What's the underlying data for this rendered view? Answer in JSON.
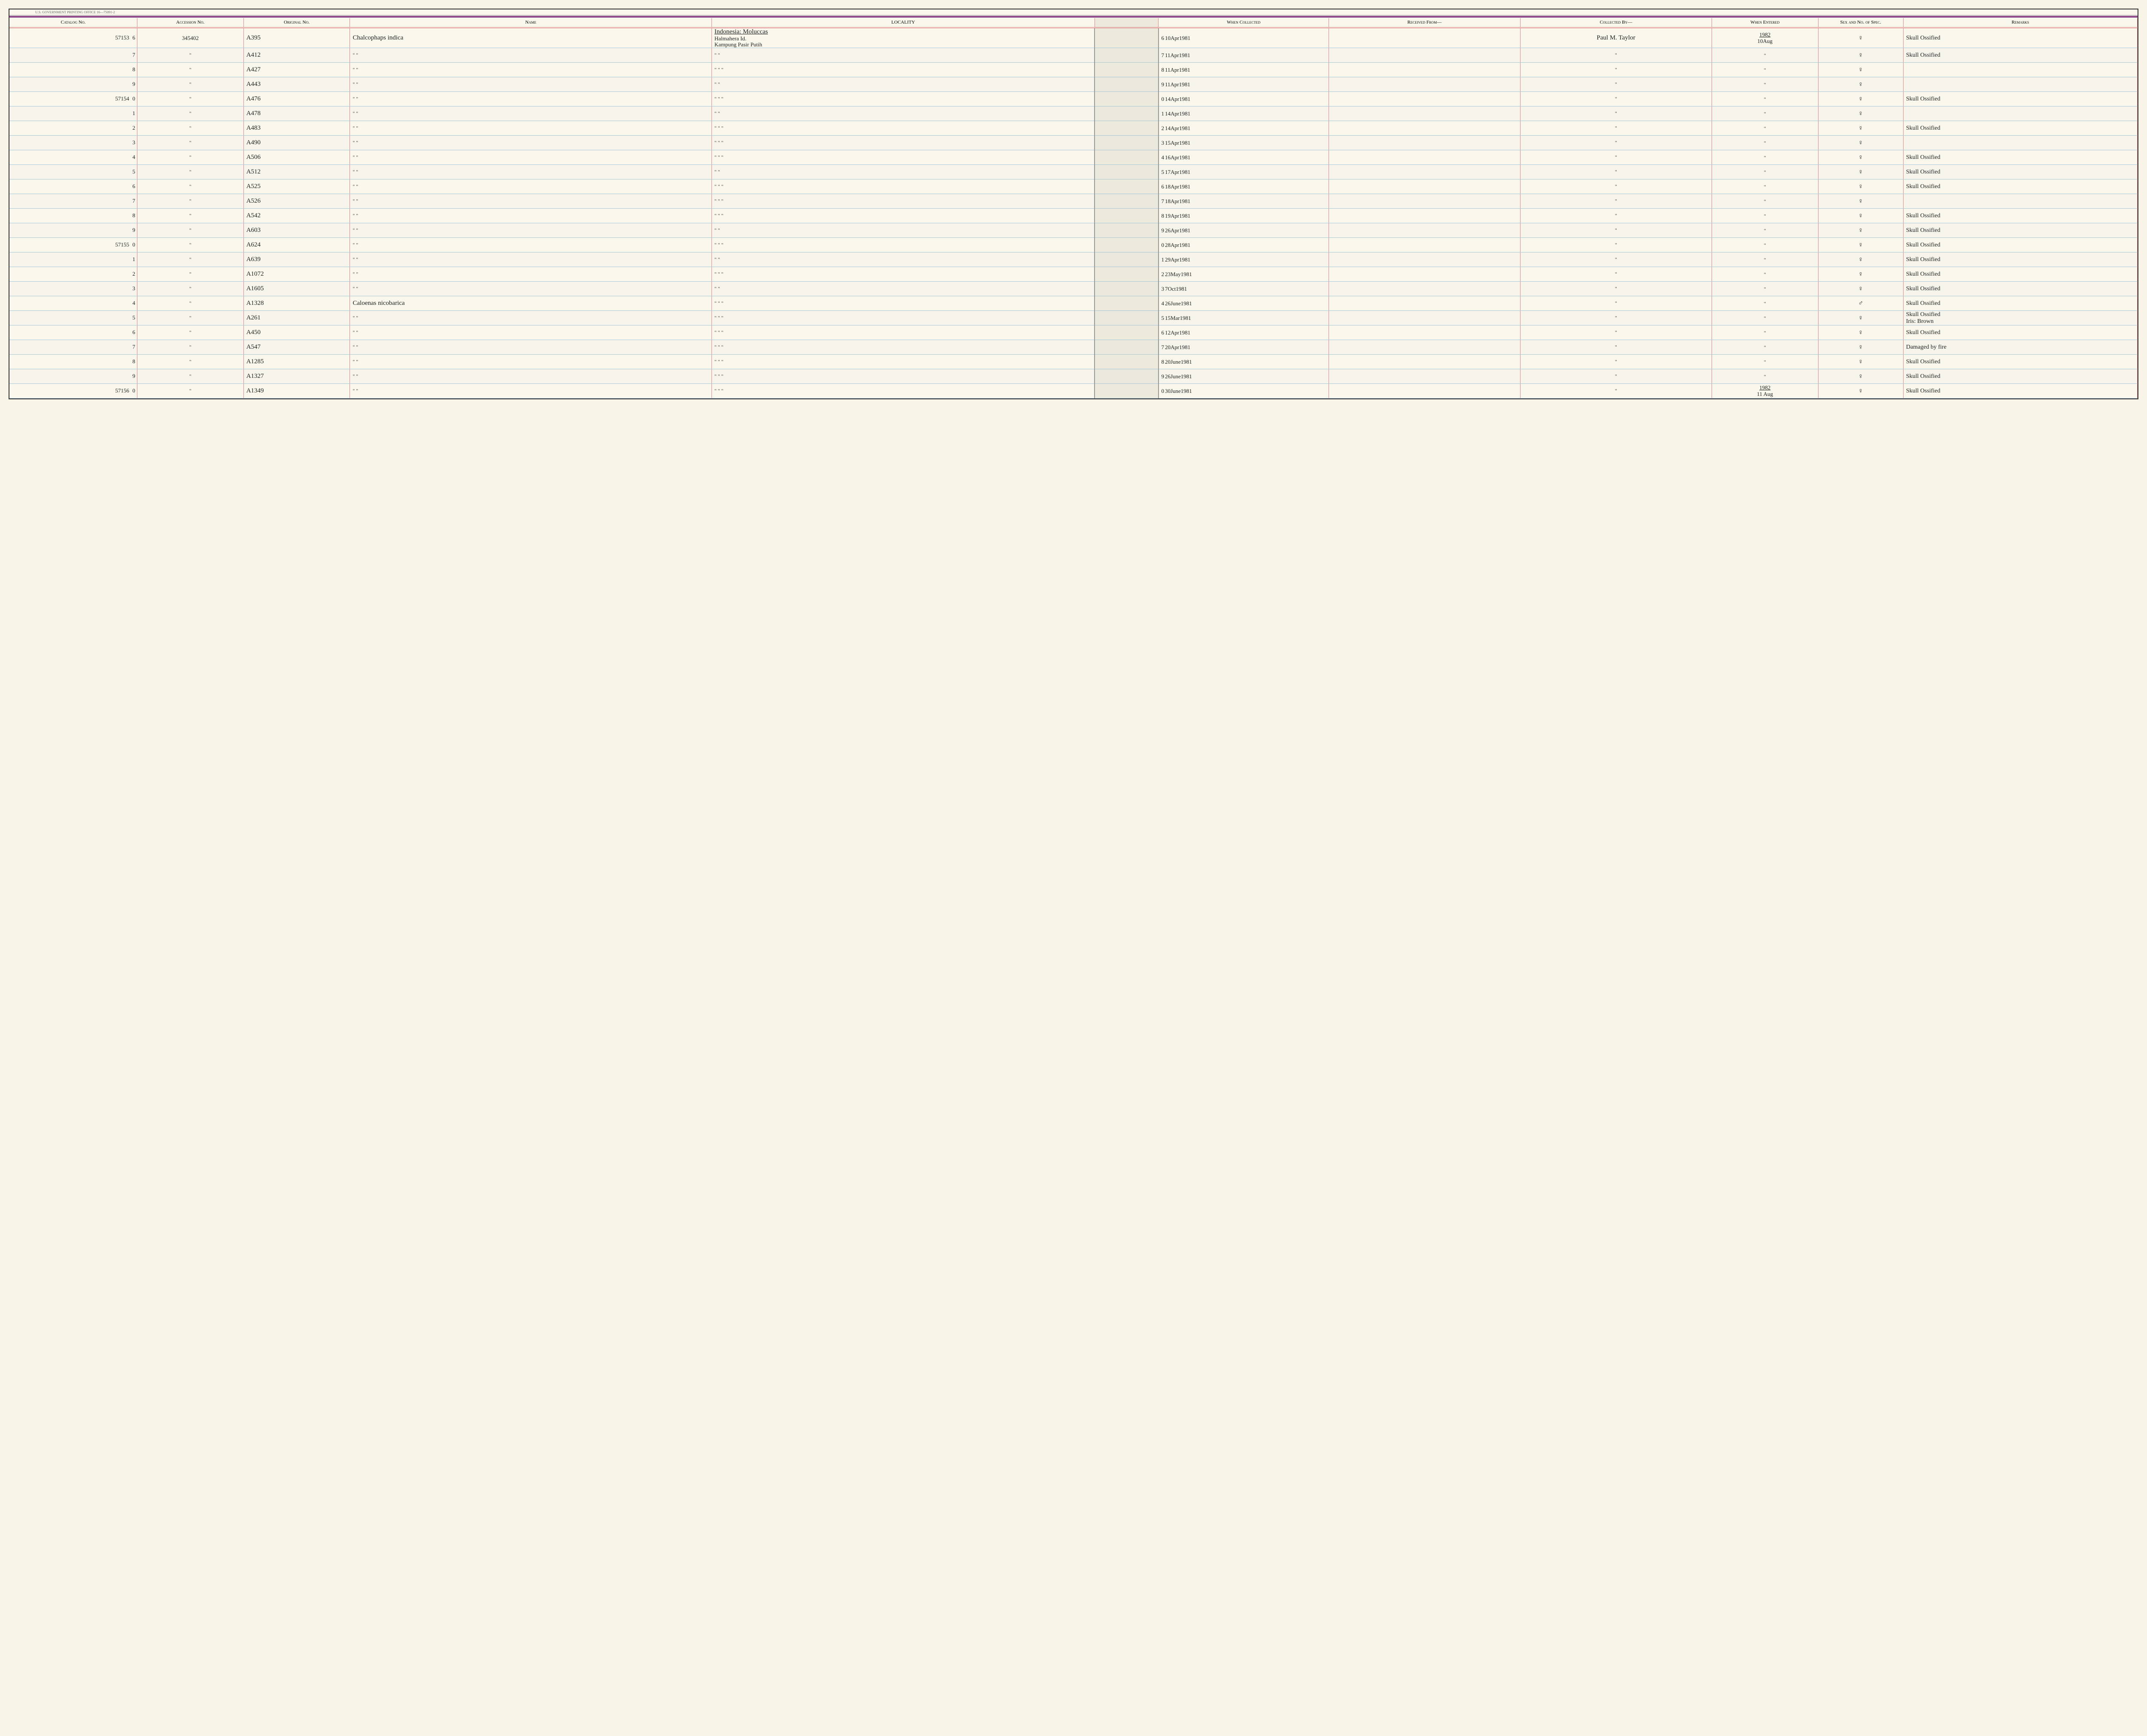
{
  "header_imprint": "U.S. GOVERNMENT PRINTING OFFICE   16—75091-2",
  "columns": {
    "catalog": "Catalog\nNo.",
    "accession": "Accession\nNo.",
    "original": "Original\nNo.",
    "name": "Name",
    "locality": "LOCALITY",
    "when_collected": "When\nCollected",
    "received": "Received From—",
    "collected_by": "Collected By—",
    "when_entered": "When\nEntered",
    "sex": "Sex and\nNo. of\nSpec.",
    "remarks": "Remarks"
  },
  "locality_header": "Indonesia: Moluccas",
  "rows": [
    {
      "catalog_main": "57153",
      "catalog_sub": "6",
      "accession": "345402",
      "original": "A395",
      "name": "Chalcophaps indica",
      "locality": "Halmahera Id.\nKampung Pasir Putih",
      "wc_sub": "6",
      "when_collected": "10Apr1981",
      "received": "",
      "collected_by": "Paul M. Taylor",
      "we_year": "1982",
      "we_date": "10Aug",
      "sex": "♀",
      "remarks": "Skull Ossified"
    },
    {
      "catalog_main": "",
      "catalog_sub": "7",
      "accession": "\"",
      "original": "A412",
      "name": "\"    \"",
      "locality": "\"    \"",
      "wc_sub": "7",
      "when_collected": "11Apr1981",
      "received": "",
      "collected_by": "\"",
      "we_year": "",
      "we_date": "\"",
      "sex": "♀",
      "remarks": "Skull Ossified"
    },
    {
      "catalog_main": "",
      "catalog_sub": "8",
      "accession": "\"",
      "original": "A427",
      "name": "\"    \"",
      "locality": "\"    \"    \"",
      "wc_sub": "8",
      "when_collected": "11Apr1981",
      "received": "",
      "collected_by": "\"",
      "we_year": "",
      "we_date": "\"",
      "sex": "♀",
      "remarks": ""
    },
    {
      "catalog_main": "",
      "catalog_sub": "9",
      "accession": "\"",
      "original": "A443",
      "name": "\"    \"",
      "locality": "\"    \"",
      "wc_sub": "9",
      "when_collected": "11Apr1981",
      "received": "",
      "collected_by": "\"",
      "we_year": "",
      "we_date": "\"",
      "sex": "♀",
      "remarks": ""
    },
    {
      "catalog_main": "57154",
      "catalog_sub": "0",
      "accession": "\"",
      "original": "A476",
      "name": "\"    \"",
      "locality": "\"    \"    \"",
      "wc_sub": "0",
      "when_collected": "14Apr1981",
      "received": "",
      "collected_by": "\"",
      "we_year": "",
      "we_date": "\"",
      "sex": "♀",
      "remarks": "Skull Ossified"
    },
    {
      "catalog_main": "",
      "catalog_sub": "1",
      "accession": "\"",
      "original": "A478",
      "name": "\"    \"",
      "locality": "\"    \"",
      "wc_sub": "1",
      "when_collected": "14Apr1981",
      "received": "",
      "collected_by": "\"",
      "we_year": "",
      "we_date": "\"",
      "sex": "♀",
      "remarks": ""
    },
    {
      "catalog_main": "",
      "catalog_sub": "2",
      "accession": "\"",
      "original": "A483",
      "name": "\"    \"",
      "locality": "\"    \"    \"",
      "wc_sub": "2",
      "when_collected": "14Apr1981",
      "received": "",
      "collected_by": "\"",
      "we_year": "",
      "we_date": "\"",
      "sex": "♀",
      "remarks": "Skull Ossified"
    },
    {
      "catalog_main": "",
      "catalog_sub": "3",
      "accession": "\"",
      "original": "A490",
      "name": "\"    \"",
      "locality": "\"    \"    \"",
      "wc_sub": "3",
      "when_collected": "15Apr1981",
      "received": "",
      "collected_by": "\"",
      "we_year": "",
      "we_date": "\"",
      "sex": "♀",
      "remarks": ""
    },
    {
      "catalog_main": "",
      "catalog_sub": "4",
      "accession": "\"",
      "original": "A506",
      "name": "\"    \"",
      "locality": "\"    \"    \"",
      "wc_sub": "4",
      "when_collected": "16Apr1981",
      "received": "",
      "collected_by": "\"",
      "we_year": "",
      "we_date": "\"",
      "sex": "♀",
      "remarks": "Skull Ossified"
    },
    {
      "catalog_main": "",
      "catalog_sub": "5",
      "accession": "\"",
      "original": "A512",
      "name": "\"    \"",
      "locality": "\"    \"",
      "wc_sub": "5",
      "when_collected": "17Apr1981",
      "received": "",
      "collected_by": "\"",
      "we_year": "",
      "we_date": "\"",
      "sex": "♀",
      "remarks": "Skull Ossified"
    },
    {
      "catalog_main": "",
      "catalog_sub": "6",
      "accession": "\"",
      "original": "A525",
      "name": "\"    \"",
      "locality": "\"    \"    \"",
      "wc_sub": "6",
      "when_collected": "18Apr1981",
      "received": "",
      "collected_by": "\"",
      "we_year": "",
      "we_date": "\"",
      "sex": "♀",
      "remarks": "Skull Ossified"
    },
    {
      "catalog_main": "",
      "catalog_sub": "7",
      "accession": "\"",
      "original": "A526",
      "name": "\"    \"",
      "locality": "\"    \"    \"",
      "wc_sub": "7",
      "when_collected": "18Apr1981",
      "received": "",
      "collected_by": "\"",
      "we_year": "",
      "we_date": "\"",
      "sex": "♀",
      "remarks": ""
    },
    {
      "catalog_main": "",
      "catalog_sub": "8",
      "accession": "\"",
      "original": "A542",
      "name": "\"    \"",
      "locality": "\"    \"    \"",
      "wc_sub": "8",
      "when_collected": "19Apr1981",
      "received": "",
      "collected_by": "\"",
      "we_year": "",
      "we_date": "\"",
      "sex": "♀",
      "remarks": "Skull Ossified"
    },
    {
      "catalog_main": "",
      "catalog_sub": "9",
      "accession": "\"",
      "original": "A603",
      "name": "\"    \"",
      "locality": "\"    \"",
      "wc_sub": "9",
      "when_collected": "26Apr1981",
      "received": "",
      "collected_by": "\"",
      "we_year": "",
      "we_date": "\"",
      "sex": "♀",
      "remarks": "Skull Ossified"
    },
    {
      "catalog_main": "57155",
      "catalog_sub": "0",
      "accession": "\"",
      "original": "A624",
      "name": "\"    \"",
      "locality": "\"    \"    \"",
      "wc_sub": "0",
      "when_collected": "28Apr1981",
      "received": "",
      "collected_by": "\"",
      "we_year": "",
      "we_date": "\"",
      "sex": "♀",
      "remarks": "Skull Ossified"
    },
    {
      "catalog_main": "",
      "catalog_sub": "1",
      "accession": "\"",
      "original": "A639",
      "name": "\"    \"",
      "locality": "\"    \"",
      "wc_sub": "1",
      "when_collected": "29Apr1981",
      "received": "",
      "collected_by": "\"",
      "we_year": "",
      "we_date": "\"",
      "sex": "♀",
      "remarks": "Skull Ossified"
    },
    {
      "catalog_main": "",
      "catalog_sub": "2",
      "accession": "\"",
      "original": "A1072",
      "name": "\"    \"",
      "locality": "\"    \"    \"",
      "wc_sub": "2",
      "when_collected": "23May1981",
      "received": "",
      "collected_by": "\"",
      "we_year": "",
      "we_date": "\"",
      "sex": "♀",
      "remarks": "Skull Ossified"
    },
    {
      "catalog_main": "",
      "catalog_sub": "3",
      "accession": "\"",
      "original": "A1605",
      "name": "\"    \"",
      "locality": "\"    \"",
      "wc_sub": "3",
      "when_collected": "7Oct1981",
      "received": "",
      "collected_by": "\"",
      "we_year": "",
      "we_date": "\"",
      "sex": "♀",
      "remarks": "Skull Ossified"
    },
    {
      "catalog_main": "",
      "catalog_sub": "4",
      "accession": "\"",
      "original": "A1328",
      "name": "Caloenas nicobarica",
      "locality": "\"    \"    \"",
      "wc_sub": "4",
      "when_collected": "26June1981",
      "received": "",
      "collected_by": "\"",
      "we_year": "",
      "we_date": "\"",
      "sex": "♂",
      "remarks": "Skull Ossified"
    },
    {
      "catalog_main": "",
      "catalog_sub": "5",
      "accession": "\"",
      "original": "A261",
      "name": "\"    \"",
      "locality": "\"    \"    \"",
      "wc_sub": "5",
      "when_collected": "15Mar1981",
      "received": "",
      "collected_by": "\"",
      "we_year": "",
      "we_date": "\"",
      "sex": "♀",
      "remarks": "Skull Ossified\nIris: Brown"
    },
    {
      "catalog_main": "",
      "catalog_sub": "6",
      "accession": "\"",
      "original": "A450",
      "name": "\"    \"",
      "locality": "\"    \"    \"",
      "wc_sub": "6",
      "when_collected": "12Apr1981",
      "received": "",
      "collected_by": "\"",
      "we_year": "",
      "we_date": "\"",
      "sex": "♀",
      "remarks": "Skull Ossified"
    },
    {
      "catalog_main": "",
      "catalog_sub": "7",
      "accession": "\"",
      "original": "A547",
      "name": "\"    \"",
      "locality": "\"    \"    \"",
      "wc_sub": "7",
      "when_collected": "20Apr1981",
      "received": "",
      "collected_by": "\"",
      "we_year": "",
      "we_date": "\"",
      "sex": "♀",
      "remarks": "Damaged by fire"
    },
    {
      "catalog_main": "",
      "catalog_sub": "8",
      "accession": "\"",
      "original": "A1285",
      "name": "\"    \"",
      "locality": "\"    \"    \"",
      "wc_sub": "8",
      "when_collected": "20June1981",
      "received": "",
      "collected_by": "\"",
      "we_year": "",
      "we_date": "\"",
      "sex": "♀",
      "remarks": "Skull Ossified"
    },
    {
      "catalog_main": "",
      "catalog_sub": "9",
      "accession": "\"",
      "original": "A1327",
      "name": "\"    \"",
      "locality": "\"    \"    \"",
      "wc_sub": "9",
      "when_collected": "26June1981",
      "received": "",
      "collected_by": "\"",
      "we_year": "",
      "we_date": "\"",
      "sex": "♀",
      "remarks": "Skull Ossified"
    },
    {
      "catalog_main": "57156",
      "catalog_sub": "0",
      "accession": "\"",
      "original": "A1349",
      "name": "\"    \"",
      "locality": "\"    \"    \"",
      "wc_sub": "0",
      "when_collected": "30June1981",
      "received": "",
      "collected_by": "\"",
      "we_year": "1982",
      "we_date": "11 Aug",
      "sex": "♀",
      "remarks": "Skull Ossified"
    }
  ]
}
